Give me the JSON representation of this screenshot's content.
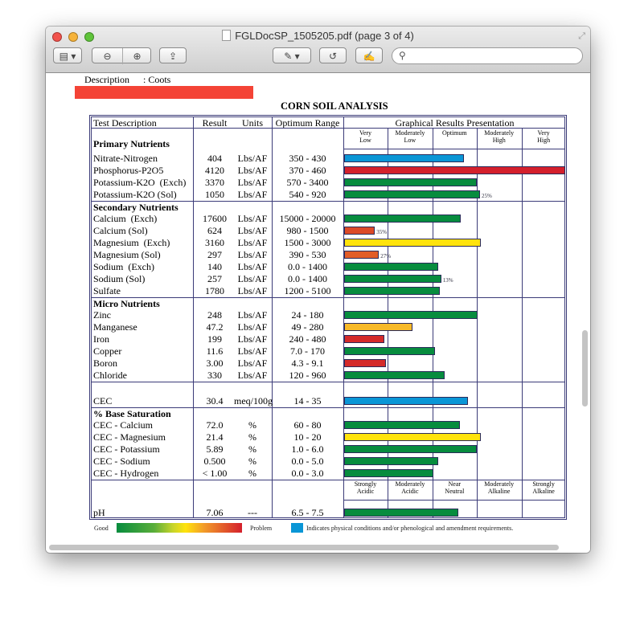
{
  "window": {
    "title": "FGLDocSP_1505205.pdf (page 3 of 4)",
    "search_placeholder": ""
  },
  "toolbar": {
    "icons": [
      "sidebar-toggle-icon",
      "zoom-out-icon",
      "zoom-in-icon",
      "share-icon",
      "annotate-pen-icon",
      "rotate-icon",
      "edit-icon",
      "search-icon"
    ]
  },
  "doc": {
    "description_label": "Description",
    "description_value": ": Coots",
    "redaction_color": "#f44336",
    "title": "CORN SOIL ANALYSIS",
    "headers": {
      "desc": "Test Description",
      "result": "Result",
      "units": "Units",
      "range": "Optimum Range",
      "graph": "Graphical Results Presentation"
    },
    "zones": [
      "Very\nLow",
      "Moderately\nLow",
      "Optimum",
      "Moderately\nHigh",
      "Very\nHigh"
    ],
    "ph_zones": [
      "Strongly\nAcidic",
      "Moderately\nAcidic",
      "Near\nNeutral",
      "Moderately\nAlkaline",
      "Strongly\nAlkaline"
    ],
    "sections": [
      {
        "title": "Primary Nutrients",
        "rows": [
          {
            "name": "Nitrate-Nitrogen",
            "result": "404",
            "units": "Lbs/AF",
            "range": "350 - 430",
            "level": 2.69,
            "color": "#0a96d6"
          },
          {
            "name": "Phosphorus-P2O5",
            "result": "4120",
            "units": "Lbs/AF",
            "range": "370 - 460",
            "level": 5.0,
            "color": "#d4202c"
          },
          {
            "name": "Potassium-K2O  (Exch)",
            "result": "3370",
            "units": "Lbs/AF",
            "range": "570 - 3400",
            "level": 2.98,
            "color": "#078c3e"
          },
          {
            "name": "Potassium-K2O (Sol)",
            "result": "1050",
            "units": "Lbs/AF",
            "range": "540 - 920",
            "level": 3.05,
            "color": "#078c3e",
            "pct": "25%"
          }
        ]
      },
      {
        "title": "Secondary Nutrients",
        "rows": [
          {
            "name": "Calcium  (Exch)",
            "result": "17600",
            "units": "Lbs/AF",
            "range": "15000 - 20000",
            "level": 2.62,
            "color": "#078c3e"
          },
          {
            "name": "Calcium (Sol)",
            "result": "624",
            "units": "Lbs/AF",
            "range": "980 - 1500",
            "level": 0.69,
            "color": "#dc4a28",
            "pct": "35%"
          },
          {
            "name": "Magnesium  (Exch)",
            "result": "3160",
            "units": "Lbs/AF",
            "range": "1500 - 3000",
            "level": 3.07,
            "color": "#ffe30c"
          },
          {
            "name": "Magnesium (Sol)",
            "result": "297",
            "units": "Lbs/AF",
            "range": "390 - 530",
            "level": 0.78,
            "color": "#e25d28",
            "pct": "27%"
          },
          {
            "name": "Sodium  (Exch)",
            "result": "140",
            "units": "Lbs/AF",
            "range": "0.0 - 1400",
            "level": 2.11,
            "color": "#078c3e"
          },
          {
            "name": "Sodium (Sol)",
            "result": "257",
            "units": "Lbs/AF",
            "range": "0.0 - 1400",
            "level": 2.18,
            "color": "#078c3e",
            "pct": "13%"
          },
          {
            "name": "Sulfate",
            "result": "1780",
            "units": "Lbs/AF",
            "range": "1200 - 5100",
            "level": 2.15,
            "color": "#078c3e"
          }
        ]
      },
      {
        "title": "Micro Nutrients",
        "rows": [
          {
            "name": "Zinc",
            "result": "248",
            "units": "Lbs/AF",
            "range": "24 - 180",
            "level": 3.0,
            "color": "#078c3e"
          },
          {
            "name": "Manganese",
            "result": "47.2",
            "units": "Lbs/AF",
            "range": "49 - 280",
            "level": 1.53,
            "color": "#f7b928"
          },
          {
            "name": "Iron",
            "result": "199",
            "units": "Lbs/AF",
            "range": "240 - 480",
            "level": 0.91,
            "color": "#d42a2a"
          },
          {
            "name": "Copper",
            "result": "11.6",
            "units": "Lbs/AF",
            "range": "7.0 - 170",
            "level": 2.04,
            "color": "#078c3e"
          },
          {
            "name": "Boron",
            "result": "3.00",
            "units": "Lbs/AF",
            "range": "4.3 - 9.1",
            "level": 0.93,
            "color": "#d42a2a"
          },
          {
            "name": "Chloride",
            "result": "330",
            "units": "Lbs/AF",
            "range": "120 - 960",
            "level": 2.25,
            "color": "#078c3e"
          }
        ]
      },
      {
        "title": "",
        "rows": [
          {
            "name": "CEC",
            "result": "30.4",
            "units": "meq/100g",
            "range": "14 - 35",
            "level": 2.78,
            "color": "#0a96d6"
          }
        ]
      },
      {
        "title": "% Base Saturation",
        "rows": [
          {
            "name": "CEC - Calcium",
            "result": "72.0",
            "units": "%",
            "range": "60 - 80",
            "level": 2.6,
            "color": "#078c3e"
          },
          {
            "name": "CEC - Magnesium",
            "result": "21.4",
            "units": "%",
            "range": "10 - 20",
            "level": 3.07,
            "color": "#ffe30c"
          },
          {
            "name": "CEC - Potassium",
            "result": "5.89",
            "units": "%",
            "range": "1.0 - 6.0",
            "level": 2.98,
            "color": "#078c3e"
          },
          {
            "name": "CEC - Sodium",
            "result": "0.500",
            "units": "%",
            "range": "0.0 - 5.0",
            "level": 2.11,
            "color": "#078c3e"
          },
          {
            "name": "CEC - Hydrogen",
            "result": "<  1.00",
            "units": "%",
            "range": "0.0 - 3.0",
            "level": 2.0,
            "color": "#078c3e"
          }
        ]
      },
      {
        "title": "",
        "rows": [
          {
            "name": "pH",
            "result": "7.06",
            "units": "---",
            "range": "6.5 - 7.5",
            "level": 2.56,
            "color": "#078c3e"
          }
        ]
      }
    ],
    "legend": {
      "good": "Good",
      "problem": "Problem",
      "blue_note": "Indicates physical conditions and/or phenological and amendment requirements.",
      "blue_color": "#0a96d6"
    }
  }
}
